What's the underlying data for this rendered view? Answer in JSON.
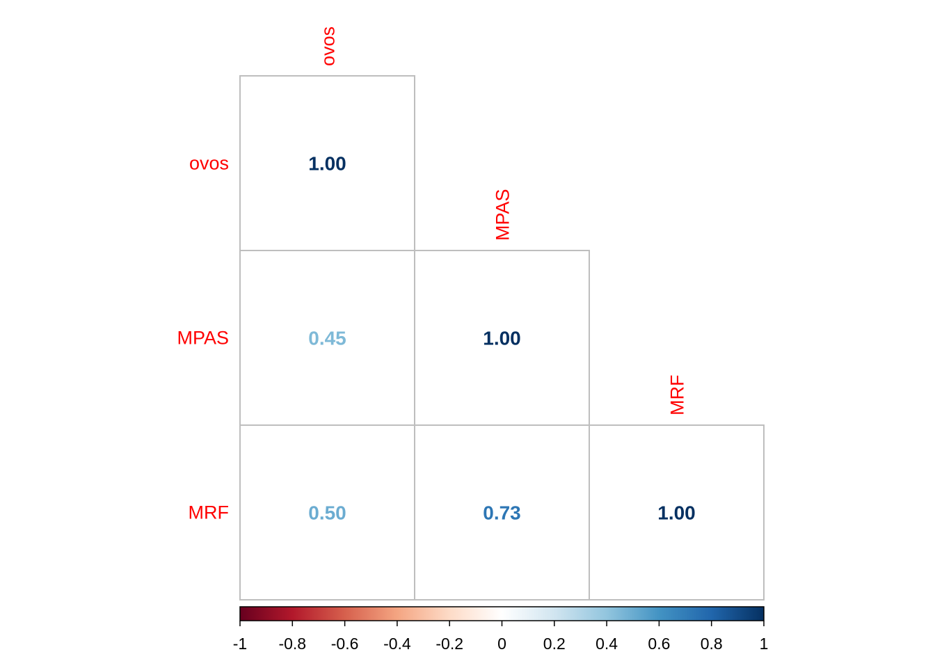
{
  "chart_data": {
    "type": "heatmap",
    "subtype": "correlation-matrix-lower-triangle",
    "variables": [
      "ovos",
      "MPAS",
      "MRF"
    ],
    "matrix": [
      [
        1.0,
        null,
        null
      ],
      [
        0.45,
        1.0,
        null
      ],
      [
        0.5,
        0.73,
        1.0
      ]
    ],
    "value_labels": [
      [
        "1.00",
        "",
        ""
      ],
      [
        "0.45",
        "1.00",
        ""
      ],
      [
        "0.50",
        "0.73",
        "1.00"
      ]
    ],
    "label_color": "#ff0000",
    "colorbar": {
      "range": [
        -1,
        1
      ],
      "ticks": [
        -1,
        -0.8,
        -0.6,
        -0.4,
        -0.2,
        0,
        0.2,
        0.4,
        0.6,
        0.8,
        1
      ],
      "tick_labels": [
        "-1",
        "-0.8",
        "-0.6",
        "-0.4",
        "-0.2",
        "0",
        "0.2",
        "0.4",
        "0.6",
        "0.8",
        "1"
      ],
      "placement": "bottom",
      "colors": [
        "#67001f",
        "#b2182b",
        "#d6604d",
        "#f4a582",
        "#fddbc7",
        "#ffffff",
        "#d1e5f0",
        "#92c5de",
        "#4393c3",
        "#2166ac",
        "#053061"
      ]
    }
  }
}
